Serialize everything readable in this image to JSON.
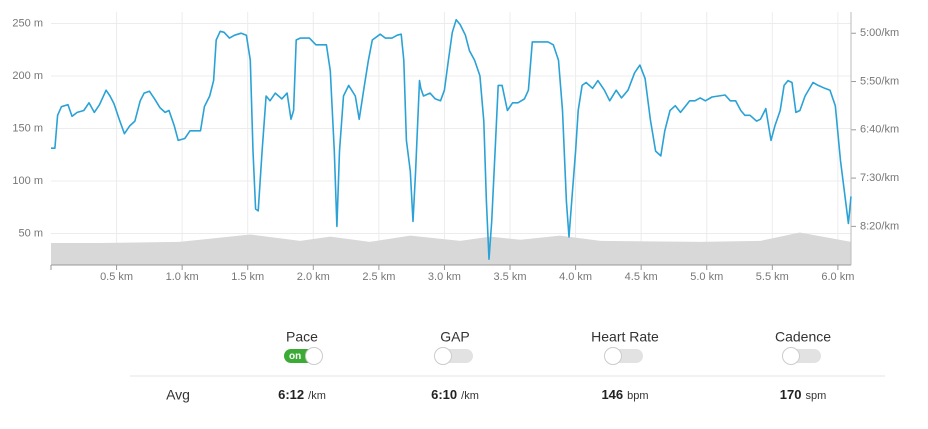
{
  "chart_data": {
    "type": "line",
    "x": [
      0,
      0.03,
      0.05,
      0.08,
      0.13,
      0.16,
      0.2,
      0.25,
      0.29,
      0.33,
      0.37,
      0.42,
      0.45,
      0.48,
      0.52,
      0.56,
      0.6,
      0.64,
      0.68,
      0.71,
      0.75,
      0.79,
      0.83,
      0.87,
      0.9,
      0.94,
      0.97,
      1.02,
      1.06,
      1.08,
      1.14,
      1.17,
      1.21,
      1.24,
      1.26,
      1.29,
      1.32,
      1.36,
      1.4,
      1.45,
      1.49,
      1.52,
      1.54,
      1.56,
      1.58,
      1.61,
      1.64,
      1.67,
      1.71,
      1.76,
      1.8,
      1.83,
      1.85,
      1.87,
      1.9,
      1.97,
      2.02,
      2.1,
      2.13,
      2.16,
      2.18,
      2.2,
      2.23,
      2.27,
      2.32,
      2.35,
      2.39,
      2.42,
      2.45,
      2.51,
      2.55,
      2.6,
      2.64,
      2.67,
      2.69,
      2.71,
      2.74,
      2.76,
      2.78,
      2.81,
      2.82,
      2.84,
      2.89,
      2.93,
      2.97,
      3.0,
      3.03,
      3.06,
      3.09,
      3.12,
      3.16,
      3.19,
      3.23,
      3.27,
      3.3,
      3.32,
      3.34,
      3.36,
      3.39,
      3.41,
      3.44,
      3.48,
      3.52,
      3.56,
      3.61,
      3.64,
      3.67,
      3.73,
      3.79,
      3.83,
      3.87,
      3.9,
      3.93,
      3.95,
      3.97,
      4.0,
      4.02,
      4.05,
      4.08,
      4.13,
      4.17,
      4.22,
      4.26,
      4.31,
      4.35,
      4.4,
      4.45,
      4.49,
      4.53,
      4.57,
      4.61,
      4.65,
      4.68,
      4.72,
      4.76,
      4.8,
      4.84,
      4.87,
      4.91,
      4.95,
      4.99,
      5.04,
      5.09,
      5.14,
      5.18,
      5.22,
      5.26,
      5.29,
      5.33,
      5.38,
      5.41,
      5.45,
      5.49,
      5.52,
      5.56,
      5.59,
      5.62,
      5.65,
      5.68,
      5.71,
      5.75,
      5.81,
      5.85,
      5.9,
      5.94,
      5.98,
      6.02,
      6.05,
      6.08,
      6.1
    ],
    "series": [
      {
        "name": "Pace",
        "axis": "y2",
        "color": "#2ba2d6",
        "values": [
          419,
          419,
          385,
          376,
          374,
          386,
          382,
          380,
          372,
          382,
          374,
          359,
          365,
          373,
          389,
          404,
          396,
          391,
          370,
          362,
          360,
          368,
          377,
          382,
          380,
          396,
          411,
          409,
          401,
          401,
          401,
          376,
          365,
          349,
          307,
          298,
          299,
          305,
          302,
          300,
          302,
          328,
          422,
          482,
          484,
          422,
          365,
          370,
          362,
          368,
          362,
          389,
          380,
          307,
          305,
          305,
          312,
          312,
          339,
          422,
          500,
          422,
          365,
          354,
          365,
          389,
          354,
          328,
          307,
          301,
          305,
          305,
          302,
          301,
          328,
          411,
          443,
          495,
          443,
          349,
          357,
          365,
          362,
          368,
          370,
          359,
          328,
          299,
          286,
          291,
          302,
          318,
          328,
          344,
          391,
          474,
          534,
          495,
          411,
          354,
          354,
          380,
          372,
          372,
          368,
          359,
          309,
          309,
          309,
          312,
          328,
          380,
          474,
          511,
          474,
          422,
          380,
          354,
          351,
          357,
          349,
          359,
          370,
          359,
          367,
          359,
          341,
          333,
          347,
          389,
          422,
          427,
          401,
          380,
          375,
          382,
          375,
          370,
          370,
          367,
          370,
          366,
          365,
          364,
          370,
          370,
          380,
          385,
          385,
          391,
          389,
          378,
          411,
          396,
          380,
          354,
          349,
          351,
          382,
          380,
          365,
          351,
          354,
          357,
          359,
          375,
          432,
          464,
          497,
          469
        ]
      }
    ],
    "elevation": {
      "color": "#d8d8d8",
      "x": [
        0,
        0.37,
        0.98,
        1.52,
        1.9,
        2.13,
        2.43,
        2.74,
        3.12,
        3.35,
        3.58,
        3.88,
        4.19,
        4.95,
        5.41,
        5.71,
        6.1
      ],
      "values": [
        41,
        41,
        42,
        49,
        43,
        47,
        42,
        48,
        43,
        47,
        44,
        48,
        43,
        42,
        43,
        51,
        42
      ]
    },
    "xlim": [
      0,
      6.1
    ],
    "xticks": [
      {
        "value": 0.5,
        "label": "0.5 km"
      },
      {
        "value": 1,
        "label": "1.0 km"
      },
      {
        "value": 1.5,
        "label": "1.5 km"
      },
      {
        "value": 2,
        "label": "2.0 km"
      },
      {
        "value": 2.5,
        "label": "2.5 km"
      },
      {
        "value": 3,
        "label": "3.0 km"
      },
      {
        "value": 3.5,
        "label": "3.5 km"
      },
      {
        "value": 4,
        "label": "4.0 km"
      },
      {
        "value": 4.5,
        "label": "4.5 km"
      },
      {
        "value": 5,
        "label": "5.0 km"
      },
      {
        "value": 5.5,
        "label": "5.5 km"
      },
      {
        "value": 6,
        "label": "6.0 km"
      }
    ],
    "ylim": [
      20,
      261
    ],
    "yticks": [
      {
        "value": 50,
        "label": "50 m"
      },
      {
        "value": 100,
        "label": "100 m"
      },
      {
        "value": 150,
        "label": "150 m"
      },
      {
        "value": 200,
        "label": "200 m"
      },
      {
        "value": 250,
        "label": "250 m"
      }
    ],
    "y2lim": [
      278,
      540
    ],
    "y2reversed": true,
    "y2ticks": [
      {
        "value": 300,
        "label": "5:00/km"
      },
      {
        "value": 350,
        "label": "5:50/km"
      },
      {
        "value": 400,
        "label": "6:40/km"
      },
      {
        "value": 450,
        "label": "7:30/km"
      },
      {
        "value": 500,
        "label": "8:20/km"
      }
    ],
    "grid": true
  },
  "controls": [
    {
      "label": "Pace",
      "on": true,
      "on_text": "on",
      "avg": "6:12",
      "unit": "/km"
    },
    {
      "label": "GAP",
      "on": false,
      "avg": "6:10",
      "unit": "/km"
    },
    {
      "label": "Heart Rate",
      "on": false,
      "avg": "146",
      "unit": "bpm"
    },
    {
      "label": "Cadence",
      "on": false,
      "avg": "170",
      "unit": "spm"
    }
  ],
  "avg_label": "Avg"
}
